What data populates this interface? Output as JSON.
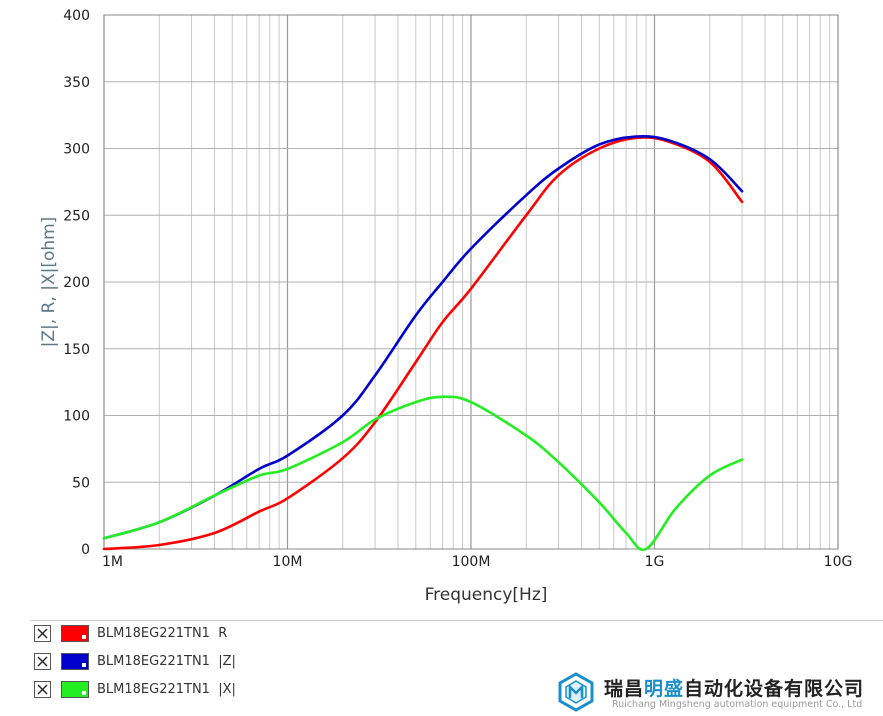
{
  "chart_data": {
    "type": "line",
    "xscale": "log",
    "xlim": [
      1000000,
      10000000000
    ],
    "ylim": [
      0,
      400
    ],
    "xlabel": "Frequency[Hz]",
    "ylabel": "|Z|, R, |X|[ohm]",
    "xticks": [
      {
        "value": 1000000,
        "label": "1M"
      },
      {
        "value": 10000000,
        "label": "10M"
      },
      {
        "value": 100000000,
        "label": "100M"
      },
      {
        "value": 1000000000,
        "label": "1G"
      },
      {
        "value": 10000000000,
        "label": "10G"
      }
    ],
    "yticks": [
      0,
      50,
      100,
      150,
      200,
      250,
      300,
      350,
      400
    ],
    "grid": true,
    "series": [
      {
        "name": "BLM18EG221TN1  R",
        "color": "#ff0000",
        "x": [
          1000000,
          2000000,
          4000000,
          7000000,
          10000000,
          20000000,
          30000000,
          50000000,
          70000000,
          100000000,
          200000000,
          300000000,
          500000000,
          800000000,
          1200000000,
          2000000000,
          3000000000
        ],
        "y": [
          0,
          3,
          12,
          28,
          38,
          68,
          95,
          140,
          170,
          195,
          250,
          280,
          300,
          308,
          305,
          290,
          260
        ]
      },
      {
        "name": "BLM18EG221TN1  |Z|",
        "color": "#0000cc",
        "x": [
          1000000,
          2000000,
          4000000,
          7000000,
          10000000,
          20000000,
          30000000,
          50000000,
          70000000,
          100000000,
          200000000,
          300000000,
          500000000,
          800000000,
          1200000000,
          2000000000,
          3000000000
        ],
        "y": [
          8,
          20,
          40,
          60,
          70,
          100,
          130,
          175,
          200,
          225,
          265,
          285,
          303,
          309,
          306,
          292,
          268
        ]
      },
      {
        "name": "BLM18EG221TN1  |X|",
        "color": "#22ee22",
        "x": [
          1000000,
          2000000,
          4000000,
          7000000,
          10000000,
          20000000,
          30000000,
          50000000,
          70000000,
          100000000,
          200000000,
          300000000,
          500000000,
          700000000,
          900000000,
          1300000000,
          2000000000,
          3000000000
        ],
        "y": [
          8,
          20,
          40,
          55,
          60,
          80,
          97,
          110,
          114,
          110,
          85,
          65,
          35,
          12,
          0,
          30,
          55,
          67
        ]
      }
    ]
  },
  "legend": [
    {
      "label": "BLM18EG221TN1  R",
      "color": "#ff0000"
    },
    {
      "label": "BLM18EG221TN1  |Z|",
      "color": "#0000cc"
    },
    {
      "label": "BLM18EG221TN1  |X|",
      "color": "#22ee22"
    }
  ],
  "watermark": {
    "cn_prefix": "瑞昌",
    "cn_highlight": "明盛",
    "cn_suffix": "自动化设备有限公司",
    "en": "Ruichang Mingsheng automation equipment Co., Ltd"
  }
}
